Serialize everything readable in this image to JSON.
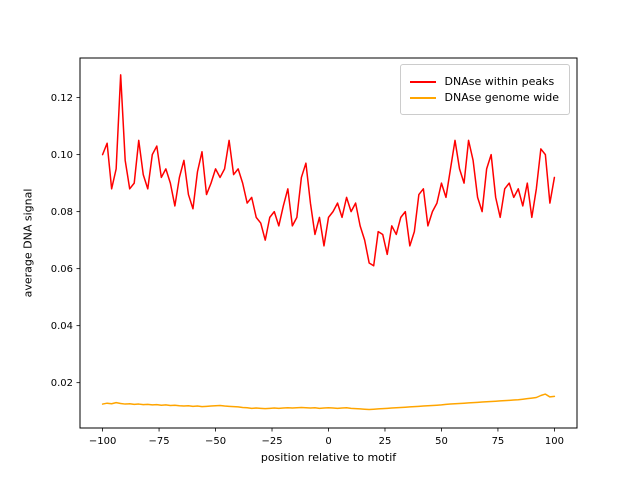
{
  "figure": {
    "background": "#ffffff"
  },
  "chart_data": {
    "type": "line",
    "title": "",
    "xlabel": "position relative to motif",
    "ylabel": "average DNA signal",
    "xlim": [
      -110,
      110
    ],
    "ylim": [
      0.0041,
      0.1339
    ],
    "grid": false,
    "legend_position": "upper right",
    "xticks": [
      {
        "value": -100,
        "label": "−100"
      },
      {
        "value": -75,
        "label": "−75"
      },
      {
        "value": -50,
        "label": "−50"
      },
      {
        "value": -25,
        "label": "−25"
      },
      {
        "value": 0,
        "label": "0"
      },
      {
        "value": 25,
        "label": "25"
      },
      {
        "value": 50,
        "label": "50"
      },
      {
        "value": 75,
        "label": "75"
      },
      {
        "value": 100,
        "label": "100"
      }
    ],
    "yticks": [
      {
        "value": 0.02,
        "label": "0.02"
      },
      {
        "value": 0.04,
        "label": "0.04"
      },
      {
        "value": 0.06,
        "label": "0.06"
      },
      {
        "value": 0.08,
        "label": "0.08"
      },
      {
        "value": 0.1,
        "label": "0.10"
      },
      {
        "value": 0.12,
        "label": "0.12"
      }
    ],
    "x": [
      -100,
      -98,
      -96,
      -94,
      -92,
      -90,
      -88,
      -86,
      -84,
      -82,
      -80,
      -78,
      -76,
      -74,
      -72,
      -70,
      -68,
      -66,
      -64,
      -62,
      -60,
      -58,
      -56,
      -54,
      -52,
      -50,
      -48,
      -46,
      -44,
      -42,
      -40,
      -38,
      -36,
      -34,
      -32,
      -30,
      -28,
      -26,
      -24,
      -22,
      -20,
      -18,
      -16,
      -14,
      -12,
      -10,
      -8,
      -6,
      -4,
      -2,
      0,
      2,
      4,
      6,
      8,
      10,
      12,
      14,
      16,
      18,
      20,
      22,
      24,
      26,
      28,
      30,
      32,
      34,
      36,
      38,
      40,
      42,
      44,
      46,
      48,
      50,
      52,
      54,
      56,
      58,
      60,
      62,
      64,
      66,
      68,
      70,
      72,
      74,
      76,
      78,
      80,
      82,
      84,
      86,
      88,
      90,
      92,
      94,
      96,
      98,
      100
    ],
    "series": [
      {
        "name": "DNAse within peaks",
        "color": "#ff0000",
        "values": [
          0.1,
          0.104,
          0.088,
          0.095,
          0.128,
          0.098,
          0.088,
          0.09,
          0.105,
          0.093,
          0.088,
          0.1,
          0.103,
          0.092,
          0.095,
          0.09,
          0.082,
          0.092,
          0.098,
          0.086,
          0.081,
          0.094,
          0.101,
          0.086,
          0.09,
          0.095,
          0.092,
          0.095,
          0.105,
          0.093,
          0.095,
          0.09,
          0.083,
          0.085,
          0.078,
          0.076,
          0.07,
          0.078,
          0.08,
          0.075,
          0.082,
          0.088,
          0.075,
          0.078,
          0.092,
          0.097,
          0.083,
          0.072,
          0.078,
          0.068,
          0.078,
          0.08,
          0.083,
          0.078,
          0.085,
          0.08,
          0.083,
          0.075,
          0.07,
          0.062,
          0.061,
          0.073,
          0.072,
          0.065,
          0.075,
          0.072,
          0.078,
          0.08,
          0.068,
          0.073,
          0.086,
          0.088,
          0.075,
          0.08,
          0.083,
          0.09,
          0.085,
          0.095,
          0.105,
          0.095,
          0.09,
          0.105,
          0.098,
          0.085,
          0.08,
          0.095,
          0.1,
          0.085,
          0.078,
          0.088,
          0.09,
          0.085,
          0.088,
          0.082,
          0.09,
          0.078,
          0.088,
          0.102,
          0.1,
          0.083,
          0.092
        ]
      },
      {
        "name": "DNAse genome wide",
        "color": "#ffa500",
        "values": [
          0.0125,
          0.0128,
          0.0126,
          0.013,
          0.0127,
          0.0125,
          0.0126,
          0.0124,
          0.0125,
          0.0123,
          0.0124,
          0.0122,
          0.0123,
          0.0121,
          0.0122,
          0.012,
          0.0121,
          0.0119,
          0.0118,
          0.0119,
          0.0117,
          0.0118,
          0.0116,
          0.0117,
          0.0118,
          0.0119,
          0.012,
          0.0118,
          0.0117,
          0.0116,
          0.0115,
          0.0113,
          0.0112,
          0.011,
          0.0111,
          0.011,
          0.0109,
          0.011,
          0.0111,
          0.011,
          0.0111,
          0.0112,
          0.0111,
          0.0112,
          0.0113,
          0.0112,
          0.0111,
          0.0112,
          0.011,
          0.0111,
          0.0112,
          0.0111,
          0.011,
          0.0111,
          0.0112,
          0.011,
          0.0109,
          0.0108,
          0.0107,
          0.0106,
          0.0107,
          0.0108,
          0.0109,
          0.011,
          0.0111,
          0.0112,
          0.0113,
          0.0114,
          0.0115,
          0.0116,
          0.0117,
          0.0118,
          0.0119,
          0.012,
          0.0121,
          0.0122,
          0.0124,
          0.0125,
          0.0126,
          0.0127,
          0.0128,
          0.0129,
          0.013,
          0.0131,
          0.0132,
          0.0133,
          0.0134,
          0.0135,
          0.0136,
          0.0137,
          0.0138,
          0.0139,
          0.014,
          0.0142,
          0.0144,
          0.0146,
          0.0148,
          0.0155,
          0.016,
          0.015,
          0.0152
        ]
      }
    ]
  }
}
